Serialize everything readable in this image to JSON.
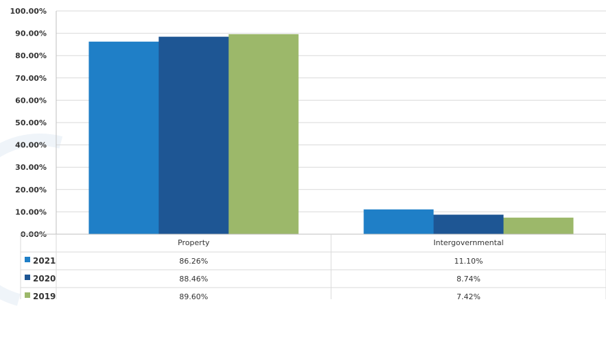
{
  "chart_data": {
    "type": "bar",
    "title": "",
    "xlabel": "",
    "ylabel": "",
    "categories": [
      "Property",
      "Intergovernmental"
    ],
    "series": [
      {
        "name": "2021",
        "values": [
          86.26,
          11.1
        ],
        "labels": [
          "86.26%",
          "11.10%"
        ],
        "color": "#1f7fc7"
      },
      {
        "name": "2020",
        "values": [
          88.46,
          8.74
        ],
        "labels": [
          "88.46%",
          "8.74%"
        ],
        "color": "#1e5694"
      },
      {
        "name": "2019",
        "values": [
          89.6,
          7.42
        ],
        "labels": [
          "89.60%",
          "7.42%"
        ],
        "color": "#9cb86a"
      }
    ],
    "ylim": [
      0,
      100
    ],
    "yticks": [
      "0.00%",
      "10.00%",
      "20.00%",
      "30.00%",
      "40.00%",
      "50.00%",
      "60.00%",
      "70.00%",
      "80.00%",
      "90.00%",
      "100.00%"
    ],
    "grid": true,
    "legend": "data-table",
    "colors": {
      "gridline": "#d9d9d9",
      "axis": "#bfbfbf"
    }
  }
}
